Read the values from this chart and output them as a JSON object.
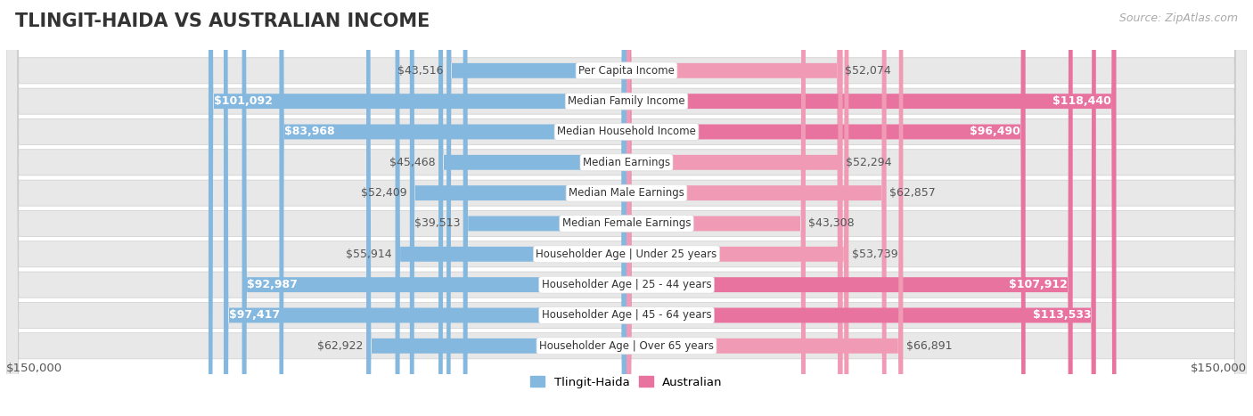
{
  "title": "TLINGIT-HAIDA VS AUSTRALIAN INCOME",
  "source": "Source: ZipAtlas.com",
  "categories": [
    "Per Capita Income",
    "Median Family Income",
    "Median Household Income",
    "Median Earnings",
    "Median Male Earnings",
    "Median Female Earnings",
    "Householder Age | Under 25 years",
    "Householder Age | 25 - 44 years",
    "Householder Age | 45 - 64 years",
    "Householder Age | Over 65 years"
  ],
  "tlingit_values": [
    43516,
    101092,
    83968,
    45468,
    52409,
    39513,
    55914,
    92987,
    97417,
    62922
  ],
  "australian_values": [
    52074,
    118440,
    96490,
    52294,
    62857,
    43308,
    53739,
    107912,
    113533,
    66891
  ],
  "tlingit_labels": [
    "$43,516",
    "$101,092",
    "$83,968",
    "$45,468",
    "$52,409",
    "$39,513",
    "$55,914",
    "$92,987",
    "$97,417",
    "$62,922"
  ],
  "australian_labels": [
    "$52,074",
    "$118,440",
    "$96,490",
    "$52,294",
    "$62,857",
    "$43,308",
    "$53,739",
    "$107,912",
    "$113,533",
    "$66,891"
  ],
  "tlingit_inside": [
    false,
    true,
    true,
    false,
    false,
    false,
    false,
    true,
    true,
    false
  ],
  "australian_inside": [
    false,
    true,
    true,
    false,
    false,
    false,
    false,
    true,
    true,
    false
  ],
  "tlingit_color": "#85b8df",
  "australian_color": "#f09ab5",
  "australian_color_hot": "#e8739f",
  "max_value": 150000,
  "legend_tlingit": "Tlingit-Haida",
  "legend_australian": "Australian",
  "x_label_left": "$150,000",
  "x_label_right": "$150,000",
  "row_bg_color": "#e8e8e8",
  "background_color": "#ffffff",
  "title_fontsize": 15,
  "label_fontsize": 9,
  "category_fontsize": 8.5,
  "source_fontsize": 9
}
